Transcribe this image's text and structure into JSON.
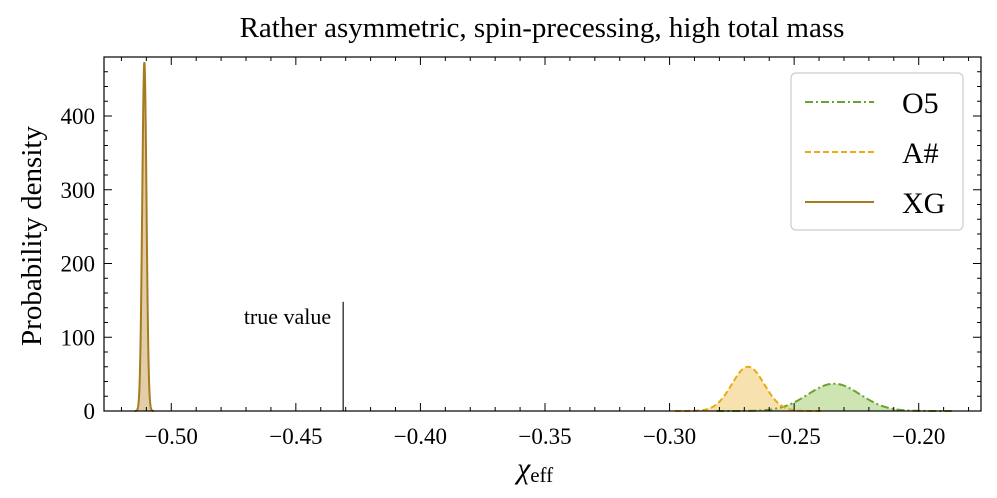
{
  "chart_data": {
    "type": "area",
    "title": "Rather asymmetric, spin-precessing, high total mass",
    "xlabel_main": "χ",
    "xlabel_sub": "eff",
    "ylabel": "Probability density",
    "xlim": [
      -0.527,
      -0.175
    ],
    "ylim": [
      0,
      480
    ],
    "grid": false,
    "legend_position": "top-right",
    "x_ticks": [
      -0.5,
      -0.45,
      -0.4,
      -0.35,
      -0.3,
      -0.25,
      -0.2
    ],
    "x_tick_labels": [
      "−0.50",
      "−0.45",
      "−0.40",
      "−0.35",
      "−0.30",
      "−0.25",
      "−0.20"
    ],
    "y_ticks": [
      0,
      100,
      200,
      300,
      400
    ],
    "y_tick_labels": [
      "0",
      "100",
      "200",
      "300",
      "400"
    ],
    "true_value": {
      "x": -0.431,
      "line_top": 148,
      "label": "true value"
    },
    "series": [
      {
        "name": "O5",
        "style": "dashdot",
        "color": "#6aa32e",
        "fill": "#c6dfa6",
        "mean": -0.234,
        "sigma": 0.0105,
        "peak": 37
      },
      {
        "name": "A#",
        "style": "dashed",
        "color": "#e6ad12",
        "fill": "#f6dca0",
        "mean": -0.2685,
        "sigma": 0.0065,
        "peak": 60
      },
      {
        "name": "XG",
        "style": "solid",
        "color": "#a67a1f",
        "fill": "#dcc59a",
        "mean": -0.5108,
        "sigma": 0.00085,
        "peak": 473
      }
    ]
  }
}
